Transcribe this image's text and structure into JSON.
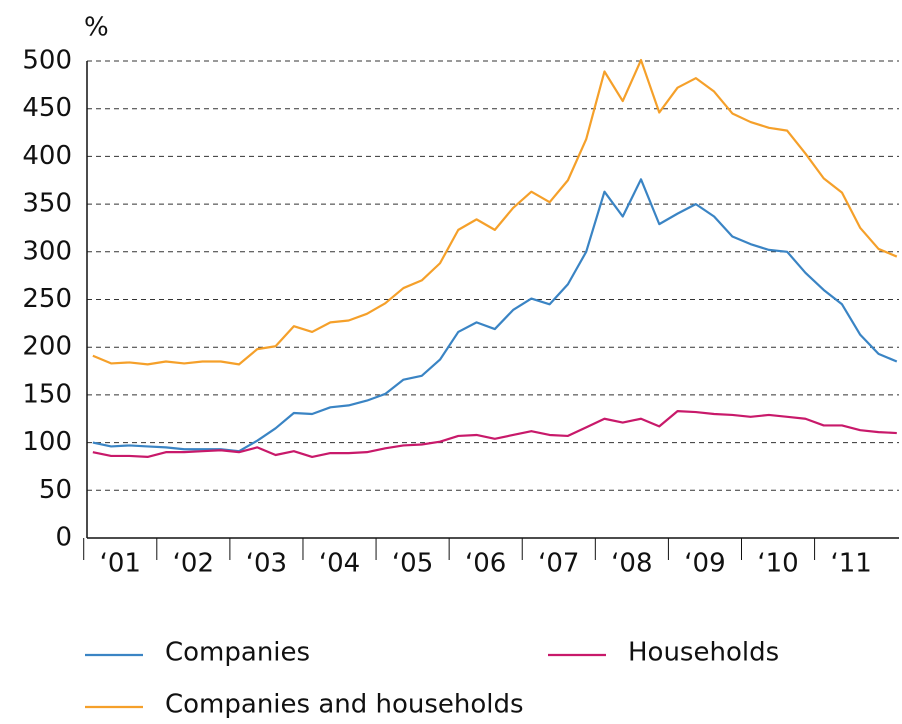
{
  "chart_data": {
    "type": "line",
    "y_label": "%",
    "x": [
      2001,
      2001.25,
      2001.5,
      2001.75,
      2002,
      2002.25,
      2002.5,
      2002.75,
      2003,
      2003.25,
      2003.5,
      2003.75,
      2004,
      2004.25,
      2004.5,
      2004.75,
      2005,
      2005.25,
      2005.5,
      2005.75,
      2006,
      2006.25,
      2006.5,
      2006.75,
      2007,
      2007.25,
      2007.5,
      2007.75,
      2008,
      2008.25,
      2008.5,
      2008.75,
      2009,
      2009.25,
      2009.5,
      2009.75,
      2010,
      2010.25,
      2010.5,
      2010.75,
      2011,
      2011.25,
      2011.5,
      2011.75,
      2012
    ],
    "xlim": [
      2000.92,
      2012.03
    ],
    "xticks": [
      {
        "value": 2001.375,
        "label": "‘01"
      },
      {
        "value": 2002.375,
        "label": "‘02"
      },
      {
        "value": 2003.375,
        "label": "‘03"
      },
      {
        "value": 2004.375,
        "label": "‘04"
      },
      {
        "value": 2005.375,
        "label": "‘05"
      },
      {
        "value": 2006.375,
        "label": "‘06"
      },
      {
        "value": 2007.375,
        "label": "‘07"
      },
      {
        "value": 2008.375,
        "label": "‘08"
      },
      {
        "value": 2009.375,
        "label": "‘09"
      },
      {
        "value": 2010.375,
        "label": "‘10"
      },
      {
        "value": 2011.375,
        "label": "‘11"
      }
    ],
    "ylim": [
      0,
      500
    ],
    "yticks": [
      0,
      50,
      100,
      150,
      200,
      250,
      300,
      350,
      400,
      450,
      500
    ],
    "grid": true,
    "series": [
      {
        "name": "Companies",
        "color": "#3a84c4",
        "values": [
          100,
          96,
          97,
          96,
          95,
          93,
          93,
          93,
          91,
          102,
          115,
          131,
          130,
          137,
          139,
          144,
          151,
          166,
          170,
          187,
          216,
          226,
          219,
          239,
          251,
          245,
          266,
          300,
          363,
          337,
          376,
          329,
          340,
          350,
          337,
          316,
          308,
          302,
          300,
          278,
          260,
          245,
          213,
          193,
          185
        ]
      },
      {
        "name": "Households",
        "color": "#c8196a",
        "values": [
          90,
          86,
          86,
          85,
          90,
          90,
          91,
          92,
          90,
          95,
          87,
          91,
          85,
          89,
          89,
          90,
          94,
          97,
          98,
          101,
          107,
          108,
          104,
          108,
          112,
          108,
          107,
          116,
          125,
          121,
          125,
          117,
          133,
          132,
          130,
          129,
          127,
          129,
          127,
          125,
          118,
          118,
          113,
          111,
          110
        ]
      },
      {
        "name": "Companies and households",
        "color": "#f5a02a",
        "values": [
          191,
          183,
          184,
          182,
          185,
          183,
          185,
          185,
          182,
          198,
          201,
          222,
          216,
          226,
          228,
          235,
          246,
          262,
          270,
          288,
          323,
          334,
          323,
          346,
          363,
          352,
          375,
          418,
          489,
          458,
          501,
          446,
          472,
          482,
          468,
          445,
          436,
          430,
          427,
          403,
          377,
          362,
          325,
          303,
          295
        ]
      }
    ]
  }
}
